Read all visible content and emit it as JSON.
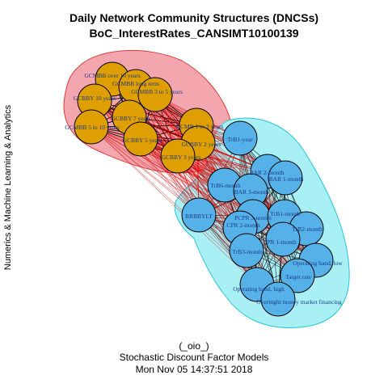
{
  "title": {
    "line1": "Daily Network Community Structures (DNCSs)",
    "line2": "BoC_InterestRates_CANSIMT10100139"
  },
  "ylabel": "Numerics & Machine Learning & Analytics",
  "footer": {
    "line1": "(_oio_)",
    "line2": "Stochastic Discount Factor Models",
    "line3": "Mon Nov 05 14:37:51 2018"
  },
  "colors": {
    "community1_node": "#E09F00",
    "community1_hull": "#F4A6AE",
    "community1_hull_border": "#E03A3A",
    "community2_node": "#56B1E8",
    "community2_hull": "#A8F0F4",
    "community2_hull_border": "#26C6D8",
    "inter_edge": "#DD0000",
    "intra_edge": "#000000",
    "label": "#1D3A8A"
  },
  "community_orange": {
    "nodes": [
      "GCMBB over 10 years",
      "GCMBB long term",
      "GCMBB 3 to 5 years",
      "GCBBY 10 years",
      "GCBBY 7 years",
      "GCMBB 5 to 10 years",
      "GCBBY 5 years",
      "GCMB 1 to 3 years",
      "GCBBY 2 years",
      "GCBBY 3 years"
    ]
  },
  "community_blue": {
    "nodes": [
      "TrB1-year",
      "BAR 2-month",
      "BAR 1-month",
      "TrB6-month",
      "BAR 3-month",
      "RRBBYLT",
      "PCPR 3-month",
      "TrB1-month",
      "CPR 2-month",
      "TrB2-month",
      "CPR 1-month",
      "TrB3-month",
      "Operating band, low",
      "Target rate",
      "Operating band, high",
      "Overnight money market financing"
    ]
  }
}
